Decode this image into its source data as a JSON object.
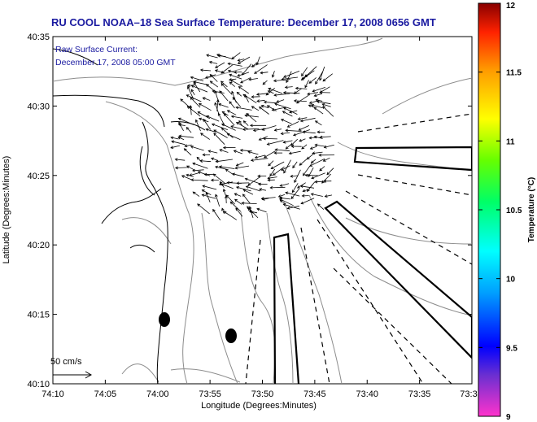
{
  "title": "RU COOL  NOAA–18  Sea Surface Temperature:  December 17, 2008 0656 GMT",
  "current_note": {
    "line1": "Raw Surface Current:",
    "line2": "December 17, 2008 05:00 GMT"
  },
  "scale_label": "50 cm/s",
  "x_axis": {
    "label": "Longitude (Degrees:Minutes)",
    "ticks": [
      "74:10",
      "74:05",
      "74:00",
      "73:55",
      "73:50",
      "73:45",
      "73:40",
      "73:35",
      "73:3"
    ]
  },
  "y_axis": {
    "label": "Latitude (Degrees:Minutes)",
    "ticks": [
      "40:35",
      "40:30",
      "40:25",
      "40:20",
      "40:15",
      "40:10"
    ]
  },
  "colorbar": {
    "label": "Temperature (°C)",
    "ticks": [
      "12",
      "11.5",
      "11",
      "10.5",
      "10",
      "9.5",
      "9"
    ]
  },
  "colors": {
    "title": "#1a1aa0",
    "coast": "#000000",
    "bathymetry": "#888888"
  }
}
